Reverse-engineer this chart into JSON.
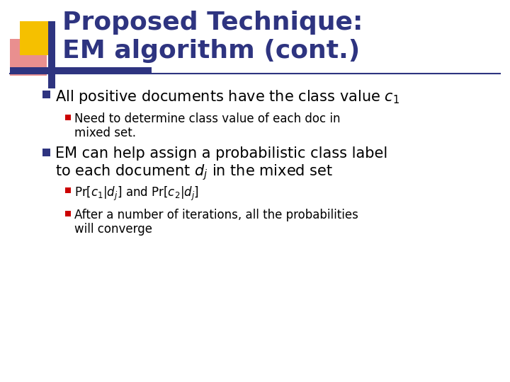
{
  "title_line1": "Proposed Technique:",
  "title_line2": "EM algorithm (cont.)",
  "title_color": "#2E3480",
  "background_color": "#FFFFFF",
  "text_color": "#000000",
  "bullet_blue": "#2E3480",
  "bullet_red": "#CC0000",
  "separator_color": "#2E3480",
  "decor_yellow": "#F5C000",
  "decor_red_grad": "#E06060",
  "decor_blue": "#2E3480",
  "figw": 7.2,
  "figh": 5.4,
  "dpi": 100
}
